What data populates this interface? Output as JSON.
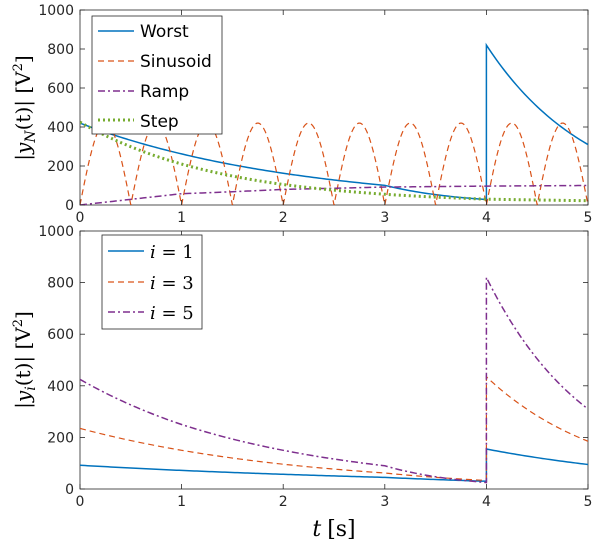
{
  "chart_data": [
    {
      "type": "line",
      "ylabel": {
        "pre": "|",
        "var": "y",
        "sub": "N",
        "arg": "(t)",
        "post": "| [V",
        "sup": "2",
        "end": "]"
      },
      "xlim": [
        0,
        5
      ],
      "ylim": [
        0,
        1000
      ],
      "xticks": [
        "0",
        "1",
        "2",
        "3",
        "4",
        "5"
      ],
      "yticks": [
        "0",
        "200",
        "400",
        "600",
        "800",
        "1000"
      ],
      "grid": false,
      "legend_position": "top-left",
      "series": [
        {
          "name": "Worst",
          "color": "#0072BD",
          "style": "solid",
          "description_points": [
            [
              0,
              420
            ],
            [
              1,
              262
            ],
            [
              2,
              163
            ],
            [
              3,
              101
            ],
            [
              4,
              28
            ],
            [
              4,
              820
            ],
            [
              5,
              310
            ]
          ]
        },
        {
          "name": "Sinusoid",
          "color": "#D95319",
          "style": "dashed",
          "peak": 420,
          "period": 0.5
        },
        {
          "name": "Ramp",
          "color": "#7E2F8E",
          "style": "dashdot",
          "points": [
            [
              0,
              0
            ],
            [
              1,
              58
            ],
            [
              2,
              80
            ],
            [
              3,
              92
            ],
            [
              4,
              97
            ],
            [
              5,
              100
            ]
          ]
        },
        {
          "name": "Step",
          "color": "#77AC30",
          "style": "dotted",
          "points": [
            [
              0,
              425
            ],
            [
              1,
              210
            ],
            [
              2,
              105
            ],
            [
              3,
              55
            ],
            [
              4,
              30
            ],
            [
              5,
              22
            ]
          ]
        }
      ]
    },
    {
      "type": "line",
      "ylabel": {
        "pre": "|",
        "var": "y",
        "sub": "i",
        "arg": "(t)",
        "post": "| [V",
        "sup": "2",
        "end": "]"
      },
      "xlabel": {
        "var": "t",
        "unit": "[s]"
      },
      "xlim": [
        0,
        5
      ],
      "ylim": [
        0,
        1000
      ],
      "xticks": [
        "0",
        "1",
        "2",
        "3",
        "4",
        "5"
      ],
      "yticks": [
        "0",
        "200",
        "400",
        "600",
        "800",
        "1000"
      ],
      "grid": false,
      "legend_position": "top-left",
      "series": [
        {
          "name": "i = 1",
          "color": "#0072BD",
          "style": "solid",
          "points": [
            [
              0,
              92
            ],
            [
              1,
              72
            ],
            [
              2,
              57
            ],
            [
              3,
              45
            ],
            [
              4,
              30
            ],
            [
              4,
              155
            ],
            [
              5,
              95
            ]
          ]
        },
        {
          "name": "i = 3",
          "color": "#D95319",
          "style": "dashed",
          "points": [
            [
              0,
              235
            ],
            [
              1,
              150
            ],
            [
              2,
              96
            ],
            [
              3,
              62
            ],
            [
              4,
              33
            ],
            [
              4,
              435
            ],
            [
              5,
              185
            ]
          ]
        },
        {
          "name": "i = 5",
          "color": "#7E2F8E",
          "style": "dashdot",
          "points": [
            [
              0,
              425
            ],
            [
              1,
              250
            ],
            [
              2,
              150
            ],
            [
              3,
              90
            ],
            [
              4,
              25
            ],
            [
              4,
              820
            ],
            [
              5,
              310
            ]
          ]
        }
      ]
    }
  ],
  "legend_top": [
    "Worst",
    "Sinusoid",
    "Ramp",
    "Step"
  ],
  "legend_bottom": [
    {
      "var": "i",
      "rest": " = 1"
    },
    {
      "var": "i",
      "rest": " = 3"
    },
    {
      "var": "i",
      "rest": " = 5"
    }
  ]
}
